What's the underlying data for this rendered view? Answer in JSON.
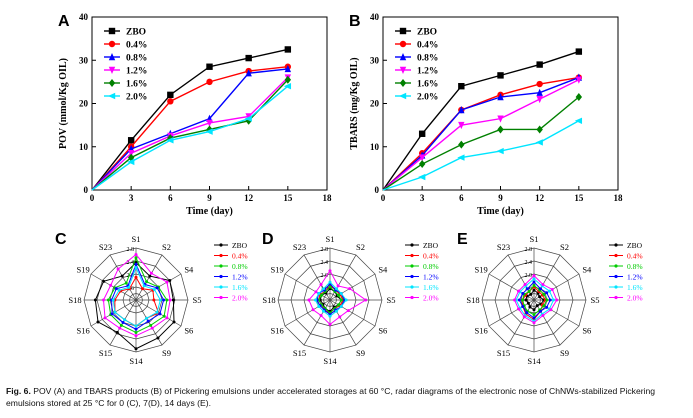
{
  "caption": {
    "label": "Fig. 6.",
    "text": "POV (A) and TBARS products (B) of Pickering emulsions under accelerated storages at 60 °C, radar diagrams of the electronic nose of ChNWs-stabilized Pickering emulsions stored at 25 °C for 0 (C), 7(D), 14 days (E)."
  },
  "chart_data": [
    {
      "panel": "A",
      "type": "line",
      "xlabel": "Time (day)",
      "ylabel": "POV (mmol/Kg OIL)",
      "xlim": [
        0,
        18
      ],
      "ylim": [
        0,
        40
      ],
      "xticks": [
        0,
        3,
        6,
        9,
        12,
        15,
        18
      ],
      "yticks": [
        0,
        10,
        20,
        30,
        40
      ],
      "legend_position": "top-left",
      "x": [
        0,
        3,
        6,
        9,
        12,
        15
      ],
      "series": [
        {
          "name": "ZBO",
          "color": "#000000",
          "marker": "square",
          "values": [
            0,
            11.5,
            22,
            28.5,
            30.5,
            32.5
          ]
        },
        {
          "name": "0.4%",
          "color": "#ff0000",
          "marker": "circle",
          "values": [
            0,
            10,
            20.5,
            25,
            27.5,
            28.5
          ]
        },
        {
          "name": "0.8%",
          "color": "#0000ff",
          "marker": "triangle-up",
          "values": [
            0,
            9.5,
            13,
            16.5,
            27,
            28
          ]
        },
        {
          "name": "1.2%",
          "color": "#ff00ff",
          "marker": "triangle-down",
          "values": [
            0,
            8.5,
            12.5,
            15.5,
            17,
            26
          ]
        },
        {
          "name": "1.6%",
          "color": "#008000",
          "marker": "diamond",
          "values": [
            0,
            7.5,
            12,
            14,
            16,
            25.5
          ]
        },
        {
          "name": "2.0%",
          "color": "#00e5ff",
          "marker": "triangle-left",
          "values": [
            0,
            6.5,
            11.5,
            13.5,
            16.5,
            24
          ]
        }
      ]
    },
    {
      "panel": "B",
      "type": "line",
      "xlabel": "Time (day)",
      "ylabel": "TBARS (mg/Kg OIL)",
      "xlim": [
        0,
        18
      ],
      "ylim": [
        0,
        40
      ],
      "xticks": [
        0,
        3,
        6,
        9,
        12,
        15,
        18
      ],
      "yticks": [
        0,
        10,
        20,
        30,
        40
      ],
      "legend_position": "top-left",
      "x": [
        0,
        3,
        6,
        9,
        12,
        15
      ],
      "series": [
        {
          "name": "ZBO",
          "color": "#000000",
          "marker": "square",
          "values": [
            0,
            13,
            24,
            26.5,
            29,
            32
          ]
        },
        {
          "name": "0.4%",
          "color": "#ff0000",
          "marker": "circle",
          "values": [
            0,
            8.5,
            18.5,
            22,
            24.5,
            26
          ]
        },
        {
          "name": "0.8%",
          "color": "#0000ff",
          "marker": "triangle-up",
          "values": [
            0,
            8,
            18.5,
            21.5,
            22.5,
            26
          ]
        },
        {
          "name": "1.2%",
          "color": "#ff00ff",
          "marker": "triangle-down",
          "values": [
            0,
            7.5,
            15,
            16.5,
            21,
            25.5
          ]
        },
        {
          "name": "1.6%",
          "color": "#008000",
          "marker": "diamond",
          "values": [
            0,
            6,
            10.5,
            14,
            14,
            21.5
          ]
        },
        {
          "name": "2.0%",
          "color": "#00e5ff",
          "marker": "triangle-left",
          "values": [
            0,
            3,
            7.5,
            9,
            11,
            16
          ]
        }
      ]
    },
    {
      "panel": "C",
      "type": "radar",
      "axes": [
        "S1",
        "S2",
        "S4",
        "S5",
        "S6",
        "S9",
        "S14",
        "S15",
        "S16",
        "S18",
        "S19",
        "S23"
      ],
      "rticks": [
        1.6,
        2.0,
        2.4,
        2.8
      ],
      "rlim": [
        1.2,
        2.8
      ],
      "legend_position": "right",
      "series": [
        {
          "name": "ZBO",
          "color": "#000000",
          "values": [
            2.35,
            2.05,
            2.4,
            2.35,
            2.55,
            2.55,
            2.7,
            2.35,
            2.55,
            2.45,
            2.35,
            2.05
          ]
        },
        {
          "name": "0.4%",
          "color": "#ff0000",
          "values": [
            1.9,
            1.6,
            1.8,
            1.75,
            2.0,
            1.85,
            2.0,
            1.9,
            1.95,
            1.85,
            1.75,
            1.6
          ]
        },
        {
          "name": "0.8%",
          "color": "#00cc00",
          "values": [
            2.5,
            1.85,
            2.0,
            2.15,
            2.2,
            2.1,
            2.2,
            2.1,
            2.1,
            2.05,
            1.95,
            1.8
          ]
        },
        {
          "name": "1.2%",
          "color": "#0000ff",
          "values": [
            2.3,
            1.75,
            1.95,
            2.05,
            2.05,
            1.95,
            2.1,
            2.0,
            2.05,
            1.95,
            1.9,
            1.7
          ]
        },
        {
          "name": "1.6%",
          "color": "#00e5ff",
          "values": [
            2.2,
            1.7,
            1.85,
            1.95,
            1.95,
            1.85,
            2.0,
            1.9,
            1.95,
            1.9,
            1.8,
            1.65
          ]
        },
        {
          "name": "2.0%",
          "color": "#ff00ff",
          "values": [
            2.6,
            2.15,
            2.3,
            2.25,
            2.3,
            2.2,
            2.3,
            2.2,
            2.3,
            2.2,
            2.1,
            2.3
          ]
        }
      ]
    },
    {
      "panel": "D",
      "type": "radar",
      "axes": [
        "S1",
        "S2",
        "S4",
        "S5",
        "S6",
        "S9",
        "S14",
        "S15",
        "S16",
        "S18",
        "S19",
        "S23"
      ],
      "rticks": [
        1.6,
        2.0,
        2.4,
        2.8
      ],
      "rlim": [
        1.2,
        2.8
      ],
      "legend_position": "right",
      "series": [
        {
          "name": "ZBO",
          "color": "#000000",
          "values": [
            1.55,
            1.5,
            1.45,
            1.55,
            1.5,
            1.45,
            1.55,
            1.5,
            1.45,
            1.5,
            1.5,
            1.45
          ]
        },
        {
          "name": "0.4%",
          "color": "#ff0000",
          "values": [
            1.65,
            1.55,
            1.55,
            1.6,
            1.55,
            1.5,
            1.6,
            1.55,
            1.5,
            1.55,
            1.55,
            1.5
          ]
        },
        {
          "name": "0.8%",
          "color": "#00cc00",
          "values": [
            1.6,
            1.5,
            1.5,
            1.55,
            1.5,
            1.5,
            1.6,
            1.5,
            1.5,
            1.55,
            1.5,
            1.5
          ]
        },
        {
          "name": "1.2%",
          "color": "#0000ff",
          "values": [
            1.7,
            1.55,
            1.6,
            1.65,
            1.6,
            1.55,
            1.65,
            1.55,
            1.55,
            1.6,
            1.6,
            1.55
          ]
        },
        {
          "name": "1.6%",
          "color": "#00e5ff",
          "values": [
            1.75,
            1.6,
            1.6,
            1.7,
            1.6,
            1.6,
            1.7,
            1.6,
            1.6,
            1.65,
            1.6,
            1.6
          ]
        },
        {
          "name": "2.0%",
          "color": "#ff00ff",
          "values": [
            2.1,
            1.7,
            1.9,
            2.3,
            1.85,
            1.8,
            1.95,
            1.75,
            1.8,
            1.85,
            1.7,
            1.75
          ]
        }
      ]
    },
    {
      "panel": "E",
      "type": "radar",
      "axes": [
        "S1",
        "S2",
        "S4",
        "S5",
        "S6",
        "S9",
        "S14",
        "S15",
        "S16",
        "S18",
        "S19",
        "S23"
      ],
      "rticks": [
        1.6,
        2.0,
        2.4,
        2.8
      ],
      "rlim": [
        1.2,
        2.8
      ],
      "legend_position": "right",
      "series": [
        {
          "name": "ZBO",
          "color": "#000000",
          "values": [
            1.5,
            1.45,
            1.4,
            1.5,
            1.45,
            1.4,
            1.5,
            1.45,
            1.4,
            1.45,
            1.45,
            1.4
          ]
        },
        {
          "name": "0.4%",
          "color": "#ff0000",
          "values": [
            1.6,
            1.5,
            1.5,
            1.55,
            1.5,
            1.6,
            1.8,
            1.7,
            1.6,
            1.55,
            1.5,
            1.5
          ]
        },
        {
          "name": "0.8%",
          "color": "#00cc00",
          "values": [
            1.65,
            1.55,
            1.55,
            1.6,
            1.55,
            1.55,
            1.65,
            1.6,
            1.55,
            1.55,
            1.55,
            1.5
          ]
        },
        {
          "name": "1.2%",
          "color": "#0000ff",
          "values": [
            1.75,
            1.6,
            1.65,
            1.7,
            1.65,
            1.6,
            1.75,
            1.65,
            1.6,
            1.65,
            1.6,
            1.6
          ]
        },
        {
          "name": "1.6%",
          "color": "#00e5ff",
          "values": [
            1.85,
            1.7,
            1.75,
            1.8,
            1.75,
            1.7,
            1.85,
            1.75,
            1.7,
            1.75,
            1.7,
            1.7
          ]
        },
        {
          "name": "2.0%",
          "color": "#ff00ff",
          "values": [
            1.95,
            1.75,
            1.85,
            1.9,
            1.8,
            1.75,
            1.9,
            1.8,
            1.75,
            1.8,
            1.75,
            1.75
          ]
        }
      ]
    }
  ]
}
